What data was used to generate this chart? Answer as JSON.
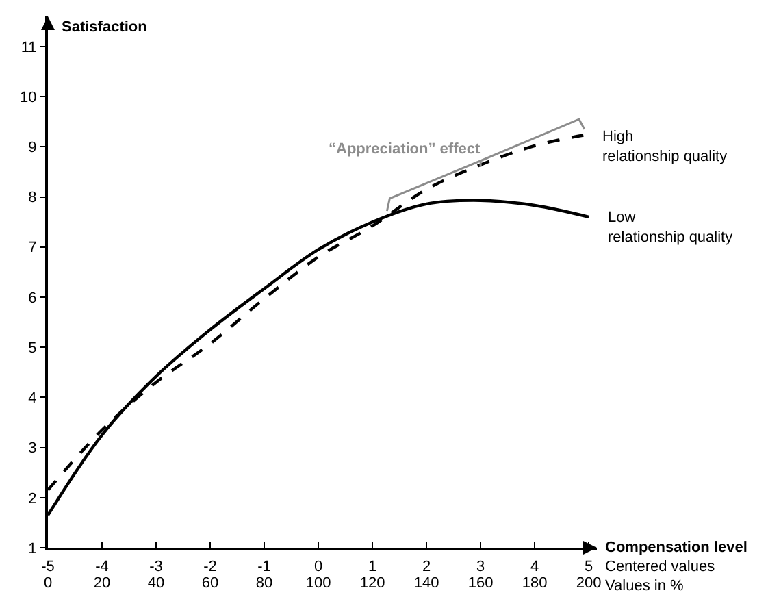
{
  "chart_data": {
    "type": "line",
    "ylabel": "Satisfaction",
    "xlabel": "Compensation level",
    "x2label": "Values in %",
    "xlim": [
      -5,
      5.15
    ],
    "xticks": [
      -5,
      -4,
      -3,
      -2,
      -1,
      0,
      1,
      2,
      3,
      4,
      5
    ],
    "x2lim": [
      0,
      203
    ],
    "x2ticks": [
      0,
      20,
      40,
      60,
      80,
      100,
      120,
      140,
      160,
      180,
      200
    ],
    "ylim": [
      1,
      11.6
    ],
    "yticks": [
      1,
      2,
      3,
      4,
      5,
      6,
      7,
      8,
      9,
      10,
      11
    ],
    "legend": false,
    "marker": "none",
    "annotations": [
      "Centered values",
      "“Appreciation” effect"
    ],
    "series": [
      {
        "name": "Low relationship quality",
        "color": "#000000",
        "line_style": "solid",
        "x": [
          -5,
          -4,
          -3,
          -2,
          -1,
          0,
          1,
          2,
          3,
          4,
          5
        ],
        "values": [
          1.65,
          3.25,
          4.42,
          5.35,
          6.17,
          6.95,
          7.5,
          7.86,
          7.93,
          7.83,
          7.6
        ]
      },
      {
        "name": "High relationship quality",
        "color": "#000000",
        "line_style": "dashed",
        "x": [
          -5,
          -4,
          -3,
          -2,
          -1,
          0,
          1,
          2,
          3,
          4,
          4.9
        ],
        "values": [
          2.15,
          3.35,
          4.3,
          5.07,
          5.97,
          6.8,
          7.42,
          8.15,
          8.64,
          9.02,
          9.23
        ]
      }
    ]
  }
}
